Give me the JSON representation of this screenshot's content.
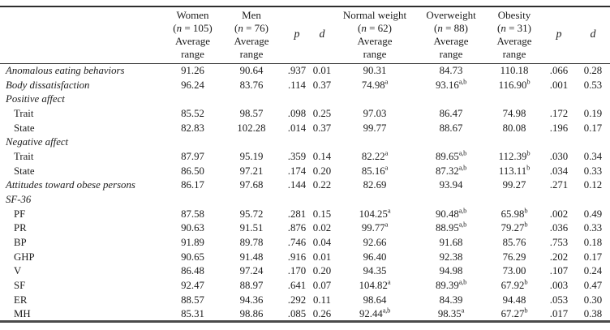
{
  "page": {
    "background_color": "#ffffff",
    "text_color": "#1c1c1c",
    "rule_color": "#2e2e2e"
  },
  "table": {
    "header": {
      "n_letter": "n",
      "avg_lines": [
        "Average",
        "range"
      ],
      "columns": [
        {
          "type": "label"
        },
        {
          "type": "group",
          "title": "Women",
          "n": "105"
        },
        {
          "type": "group",
          "title": "Men",
          "n": "76"
        },
        {
          "type": "stat",
          "letter": "p"
        },
        {
          "type": "stat",
          "letter": "d"
        },
        {
          "type": "group",
          "title": "Normal weight",
          "n": "62"
        },
        {
          "type": "group",
          "title": "Overweight",
          "n": "88"
        },
        {
          "type": "group",
          "title": "Obesity",
          "n": "31"
        },
        {
          "type": "stat",
          "letter": "p"
        },
        {
          "type": "stat",
          "letter": "d"
        }
      ]
    },
    "rows": [
      {
        "label": "Anomalous eating behaviors",
        "italic": true,
        "indent": false,
        "cells": [
          "91.26",
          "90.64",
          ".937",
          "0.01",
          "90.31",
          "84.73",
          "110.18",
          ".066",
          "0.28"
        ]
      },
      {
        "label": "Body dissatisfaction",
        "italic": true,
        "indent": false,
        "cells": [
          "96.24",
          "83.76",
          ".114",
          "0.37",
          {
            "v": "74.98",
            "s": "a"
          },
          {
            "v": "93.16",
            "s": "a,b"
          },
          {
            "v": "116.90",
            "s": "b"
          },
          ".001",
          "0.53"
        ]
      },
      {
        "label": "Positive affect",
        "italic": true,
        "indent": false,
        "cells": []
      },
      {
        "label": "Trait",
        "italic": false,
        "indent": true,
        "cells": [
          "85.52",
          "98.57",
          ".098",
          "0.25",
          "97.03",
          "86.47",
          "74.98",
          ".172",
          "0.19"
        ]
      },
      {
        "label": "State",
        "italic": false,
        "indent": true,
        "cells": [
          "82.83",
          "102.28",
          ".014",
          "0.37",
          "99.77",
          "88.67",
          "80.08",
          ".196",
          "0.17"
        ]
      },
      {
        "label": "Negative affect",
        "italic": true,
        "indent": false,
        "cells": []
      },
      {
        "label": "Trait",
        "italic": false,
        "indent": true,
        "cells": [
          "87.97",
          "95.19",
          ".359",
          "0.14",
          {
            "v": "82.22",
            "s": "a"
          },
          {
            "v": "89.65",
            "s": "a,b"
          },
          {
            "v": "112.39",
            "s": "b"
          },
          ".030",
          "0.34"
        ]
      },
      {
        "label": "State",
        "italic": false,
        "indent": true,
        "cells": [
          "86.50",
          "97.21",
          ".174",
          "0.20",
          {
            "v": "85.16",
            "s": "a"
          },
          {
            "v": "87.32",
            "s": "a,b"
          },
          {
            "v": "113.11",
            "s": "b"
          },
          ".034",
          "0.33"
        ]
      },
      {
        "label": "Attitudes toward obese persons",
        "italic": true,
        "indent": false,
        "cells": [
          "86.17",
          "97.68",
          ".144",
          "0.22",
          "82.69",
          "93.94",
          "99.27",
          ".271",
          "0.12"
        ]
      },
      {
        "label": "SF-36",
        "italic": true,
        "indent": false,
        "cells": []
      },
      {
        "label": "PF",
        "italic": false,
        "indent": true,
        "cells": [
          "87.58",
          "95.72",
          ".281",
          "0.15",
          {
            "v": "104.25",
            "s": "a"
          },
          {
            "v": "90.48",
            "s": "a,b"
          },
          {
            "v": "65.98",
            "s": "b"
          },
          ".002",
          "0.49"
        ]
      },
      {
        "label": "PR",
        "italic": false,
        "indent": true,
        "cells": [
          "90.63",
          "91.51",
          ".876",
          "0.02",
          {
            "v": "99.77",
            "s": "a"
          },
          {
            "v": "88.95",
            "s": "a,b"
          },
          {
            "v": "79.27",
            "s": "b"
          },
          ".036",
          "0.33"
        ]
      },
      {
        "label": "BP",
        "italic": false,
        "indent": true,
        "cells": [
          "91.89",
          "89.78",
          ".746",
          "0.04",
          "92.66",
          "91.68",
          "85.76",
          ".753",
          "0.18"
        ]
      },
      {
        "label": "GHP",
        "italic": false,
        "indent": true,
        "cells": [
          "90.65",
          "91.48",
          ".916",
          "0.01",
          "96.40",
          "92.38",
          "76.29",
          ".202",
          "0.17"
        ]
      },
      {
        "label": "V",
        "italic": false,
        "indent": true,
        "cells": [
          "86.48",
          "97.24",
          ".170",
          "0.20",
          "94.35",
          "94.98",
          "73.00",
          ".107",
          "0.24"
        ]
      },
      {
        "label": "SF",
        "italic": false,
        "indent": true,
        "cells": [
          "92.47",
          "88.97",
          ".641",
          "0.07",
          {
            "v": "104.82",
            "s": "a"
          },
          {
            "v": "89.39",
            "s": "a,b"
          },
          {
            "v": "67.92",
            "s": "b"
          },
          ".003",
          "0.47"
        ]
      },
      {
        "label": "ER",
        "italic": false,
        "indent": true,
        "cells": [
          "88.57",
          "94.36",
          ".292",
          "0.11",
          "98.64",
          "84.39",
          "94.48",
          ".053",
          "0.30"
        ]
      },
      {
        "label": "MH",
        "italic": false,
        "indent": true,
        "cells": [
          "85.31",
          "98.86",
          ".085",
          "0.26",
          {
            "v": "92.44",
            "s": "a,b"
          },
          {
            "v": "98.35",
            "s": "a"
          },
          {
            "v": "67.27",
            "s": "b"
          },
          ".017",
          "0.38"
        ]
      }
    ]
  }
}
